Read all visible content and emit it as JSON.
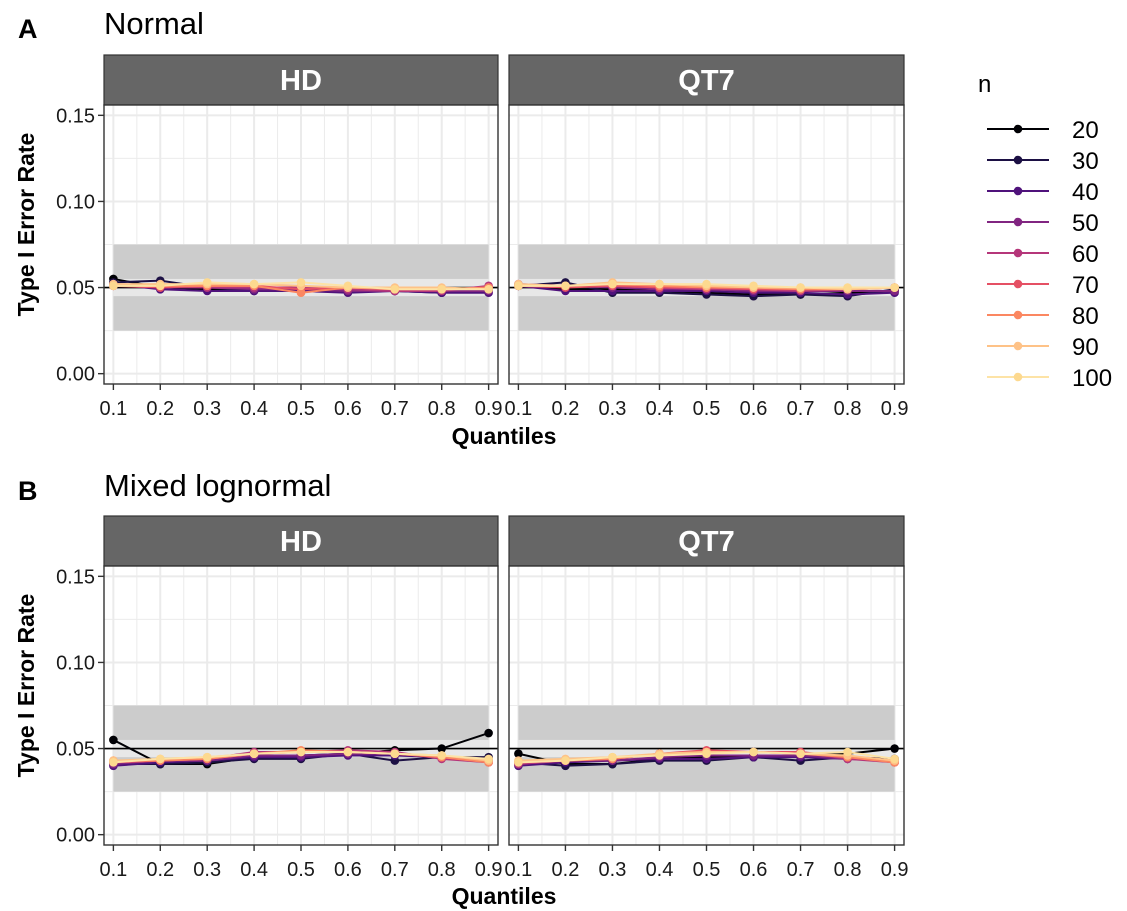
{
  "chart_data": [
    {
      "type": "line",
      "panel_letter": "A",
      "title": "Normal",
      "xlabel": "Quantiles",
      "ylabel": "Type I Error Rate",
      "ylim": [
        -0.006,
        0.156
      ],
      "xlim": [
        0.08,
        0.92
      ],
      "yticks": [
        0.0,
        0.05,
        0.1,
        0.15
      ],
      "ytick_labels": [
        "0.00",
        "0.05",
        "0.10",
        "0.15"
      ],
      "x": [
        0.1,
        0.2,
        0.3,
        0.4,
        0.5,
        0.6,
        0.7,
        0.8,
        0.9
      ],
      "xtick_labels": [
        "0.1",
        "0.2",
        "0.3",
        "0.4",
        "0.5",
        "0.6",
        "0.7",
        "0.8",
        "0.9"
      ],
      "reference_line": 0.05,
      "band_outer": [
        0.025,
        0.075
      ],
      "band_inner": [
        0.045,
        0.055
      ],
      "grid": true,
      "legend_position": "right",
      "facets": [
        {
          "label": "HD",
          "series": [
            {
              "name": "20",
              "values": [
                0.055,
                0.05,
                0.049,
                0.049,
                0.049,
                0.048,
                0.048,
                0.048,
                0.049
              ]
            },
            {
              "name": "30",
              "values": [
                0.053,
                0.054,
                0.05,
                0.048,
                0.049,
                0.048,
                0.048,
                0.047,
                0.049
              ]
            },
            {
              "name": "40",
              "values": [
                0.052,
                0.049,
                0.048,
                0.048,
                0.048,
                0.047,
                0.048,
                0.047,
                0.047
              ]
            },
            {
              "name": "50",
              "values": [
                0.052,
                0.05,
                0.05,
                0.049,
                0.049,
                0.048,
                0.048,
                0.048,
                0.048
              ]
            },
            {
              "name": "60",
              "values": [
                0.051,
                0.051,
                0.05,
                0.05,
                0.05,
                0.049,
                0.048,
                0.048,
                0.051
              ]
            },
            {
              "name": "70",
              "values": [
                0.051,
                0.05,
                0.051,
                0.051,
                0.049,
                0.05,
                0.049,
                0.049,
                0.05
              ]
            },
            {
              "name": "80",
              "values": [
                0.051,
                0.051,
                0.051,
                0.051,
                0.047,
                0.05,
                0.049,
                0.049,
                0.05
              ]
            },
            {
              "name": "90",
              "values": [
                0.052,
                0.052,
                0.052,
                0.052,
                0.051,
                0.05,
                0.05,
                0.05,
                0.049
              ]
            },
            {
              "name": "100",
              "values": [
                0.051,
                0.051,
                0.053,
                0.052,
                0.053,
                0.051,
                0.049,
                0.049,
                0.049
              ]
            }
          ]
        },
        {
          "label": "QT7",
          "series": [
            {
              "name": "20",
              "values": [
                0.051,
                0.049,
                0.049,
                0.048,
                0.047,
                0.046,
                0.046,
                0.047,
                0.048
              ]
            },
            {
              "name": "30",
              "values": [
                0.051,
                0.053,
                0.047,
                0.047,
                0.046,
                0.045,
                0.046,
                0.045,
                0.049
              ]
            },
            {
              "name": "40",
              "values": [
                0.051,
                0.048,
                0.048,
                0.048,
                0.048,
                0.047,
                0.047,
                0.046,
                0.047
              ]
            },
            {
              "name": "50",
              "values": [
                0.052,
                0.051,
                0.05,
                0.049,
                0.049,
                0.048,
                0.048,
                0.048,
                0.048
              ]
            },
            {
              "name": "60",
              "values": [
                0.051,
                0.051,
                0.051,
                0.05,
                0.049,
                0.049,
                0.048,
                0.049,
                0.05
              ]
            },
            {
              "name": "70",
              "values": [
                0.051,
                0.05,
                0.051,
                0.05,
                0.05,
                0.049,
                0.049,
                0.049,
                0.05
              ]
            },
            {
              "name": "80",
              "values": [
                0.051,
                0.051,
                0.052,
                0.051,
                0.05,
                0.05,
                0.049,
                0.049,
                0.05
              ]
            },
            {
              "name": "90",
              "values": [
                0.052,
                0.051,
                0.053,
                0.052,
                0.051,
                0.05,
                0.05,
                0.049,
                0.05
              ]
            },
            {
              "name": "100",
              "values": [
                0.051,
                0.051,
                0.052,
                0.052,
                0.052,
                0.051,
                0.05,
                0.05,
                0.05
              ]
            }
          ]
        }
      ]
    },
    {
      "type": "line",
      "panel_letter": "B",
      "title": "Mixed lognormal",
      "xlabel": "Quantiles",
      "ylabel": "Type I Error Rate",
      "ylim": [
        -0.006,
        0.156
      ],
      "xlim": [
        0.08,
        0.92
      ],
      "yticks": [
        0.0,
        0.05,
        0.1,
        0.15
      ],
      "ytick_labels": [
        "0.00",
        "0.05",
        "0.10",
        "0.15"
      ],
      "x": [
        0.1,
        0.2,
        0.3,
        0.4,
        0.5,
        0.6,
        0.7,
        0.8,
        0.9
      ],
      "xtick_labels": [
        "0.1",
        "0.2",
        "0.3",
        "0.4",
        "0.5",
        "0.6",
        "0.7",
        "0.8",
        "0.9"
      ],
      "reference_line": 0.05,
      "band_outer": [
        0.025,
        0.075
      ],
      "band_inner": [
        0.045,
        0.055
      ],
      "grid": true,
      "facets": [
        {
          "label": "HD",
          "series": [
            {
              "name": "20",
              "values": [
                0.055,
                0.041,
                0.041,
                0.045,
                0.046,
                0.047,
                0.049,
                0.05,
                0.059
              ]
            },
            {
              "name": "30",
              "values": [
                0.041,
                0.041,
                0.042,
                0.044,
                0.044,
                0.047,
                0.043,
                0.045,
                0.045
              ]
            },
            {
              "name": "40",
              "values": [
                0.04,
                0.042,
                0.043,
                0.045,
                0.045,
                0.046,
                0.046,
                0.045,
                0.043
              ]
            },
            {
              "name": "50",
              "values": [
                0.041,
                0.043,
                0.043,
                0.046,
                0.046,
                0.047,
                0.047,
                0.045,
                0.043
              ]
            },
            {
              "name": "60",
              "values": [
                0.042,
                0.043,
                0.044,
                0.048,
                0.048,
                0.049,
                0.048,
                0.044,
                0.042
              ]
            },
            {
              "name": "70",
              "values": [
                0.042,
                0.043,
                0.044,
                0.047,
                0.048,
                0.048,
                0.047,
                0.045,
                0.042
              ]
            },
            {
              "name": "80",
              "values": [
                0.043,
                0.043,
                0.044,
                0.047,
                0.049,
                0.048,
                0.047,
                0.045,
                0.042
              ]
            },
            {
              "name": "90",
              "values": [
                0.043,
                0.044,
                0.045,
                0.047,
                0.048,
                0.048,
                0.047,
                0.046,
                0.043
              ]
            },
            {
              "name": "100",
              "values": [
                0.042,
                0.044,
                0.045,
                0.047,
                0.048,
                0.048,
                0.047,
                0.046,
                0.044
              ]
            }
          ]
        },
        {
          "label": "QT7",
          "series": [
            {
              "name": "20",
              "values": [
                0.047,
                0.041,
                0.041,
                0.044,
                0.045,
                0.045,
                0.046,
                0.047,
                0.05
              ]
            },
            {
              "name": "30",
              "values": [
                0.042,
                0.04,
                0.041,
                0.043,
                0.043,
                0.045,
                0.043,
                0.045,
                0.044
              ]
            },
            {
              "name": "40",
              "values": [
                0.04,
                0.042,
                0.043,
                0.044,
                0.044,
                0.045,
                0.045,
                0.044,
                0.043
              ]
            },
            {
              "name": "50",
              "values": [
                0.041,
                0.043,
                0.043,
                0.045,
                0.046,
                0.046,
                0.046,
                0.044,
                0.043
              ]
            },
            {
              "name": "60",
              "values": [
                0.041,
                0.043,
                0.044,
                0.047,
                0.048,
                0.048,
                0.048,
                0.044,
                0.042
              ]
            },
            {
              "name": "70",
              "values": [
                0.042,
                0.043,
                0.044,
                0.047,
                0.049,
                0.048,
                0.048,
                0.045,
                0.042
              ]
            },
            {
              "name": "80",
              "values": [
                0.042,
                0.043,
                0.044,
                0.047,
                0.048,
                0.048,
                0.047,
                0.045,
                0.042
              ]
            },
            {
              "name": "90",
              "values": [
                0.043,
                0.044,
                0.045,
                0.047,
                0.048,
                0.048,
                0.047,
                0.046,
                0.043
              ]
            },
            {
              "name": "100",
              "values": [
                0.042,
                0.043,
                0.045,
                0.046,
                0.047,
                0.048,
                0.047,
                0.048,
                0.044
              ]
            }
          ]
        }
      ]
    }
  ],
  "legend": {
    "title": "n",
    "entries": [
      {
        "label": "20",
        "color": "#000004"
      },
      {
        "label": "30",
        "color": "#1c1044"
      },
      {
        "label": "40",
        "color": "#4f127b"
      },
      {
        "label": "50",
        "color": "#812581"
      },
      {
        "label": "60",
        "color": "#b5367a"
      },
      {
        "label": "70",
        "color": "#e55064"
      },
      {
        "label": "80",
        "color": "#fb8761"
      },
      {
        "label": "90",
        "color": "#fec287"
      },
      {
        "label": "100",
        "color": "#fcfdbf"
      }
    ]
  },
  "colors": {
    "strip": "#666666",
    "band": "#cccccc",
    "grid": "#ebebeb",
    "reference": "#000000"
  }
}
